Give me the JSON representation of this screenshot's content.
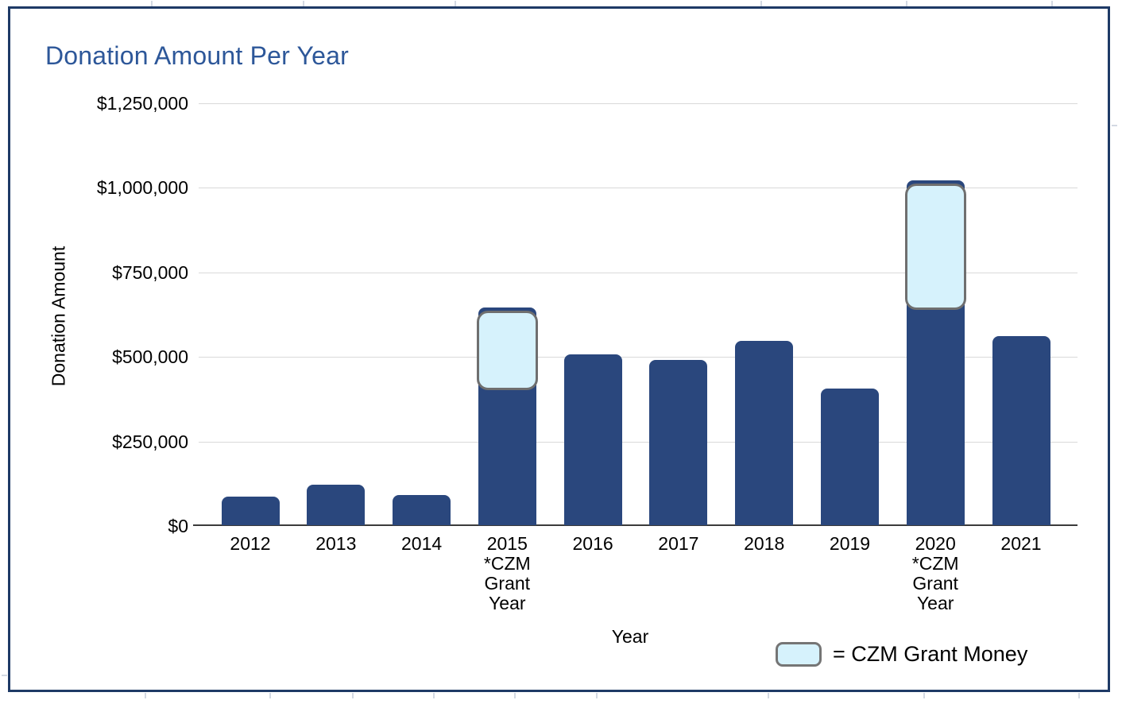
{
  "chart_data": {
    "type": "bar",
    "title": "Donation Amount Per Year",
    "xlabel": "Year",
    "ylabel": "Donation Amount",
    "ylim": [
      0,
      1250000
    ],
    "grid": true,
    "legend_position": "bottom-right",
    "yticks": [
      {
        "value": 0,
        "label": "$0"
      },
      {
        "value": 250000,
        "label": "$250,000"
      },
      {
        "value": 500000,
        "label": "$500,000"
      },
      {
        "value": 750000,
        "label": "$750,000"
      },
      {
        "value": 1000000,
        "label": "$1,000,000"
      },
      {
        "value": 1250000,
        "label": "$1,250,000"
      }
    ],
    "bars": [
      {
        "year": "2012",
        "value": 85000
      },
      {
        "year": "2013",
        "value": 120000
      },
      {
        "year": "2014",
        "value": 90000
      },
      {
        "year": "2015",
        "value": 645000,
        "sublabels": [
          "*CZM",
          "Grant",
          "Year"
        ],
        "grant": {
          "from": 410000,
          "to": 645000
        }
      },
      {
        "year": "2016",
        "value": 505000
      },
      {
        "year": "2017",
        "value": 490000
      },
      {
        "year": "2018",
        "value": 545000
      },
      {
        "year": "2019",
        "value": 405000
      },
      {
        "year": "2020",
        "value": 1020000,
        "sublabels": [
          "*CZM",
          "Grant",
          "Year"
        ],
        "grant": {
          "from": 645000,
          "to": 1020000
        }
      },
      {
        "year": "2021",
        "value": 560000
      }
    ],
    "legend": {
      "label": "= CZM Grant Money"
    }
  },
  "colors": {
    "title": "#2d5799",
    "bar": "#2a477d",
    "grant_fill": "#d6f2fc",
    "grant_border": "#6f6f6f",
    "gridline": "#d9d9d9",
    "axis_line": "#3b3b3b",
    "frame_border": "#1e3a66"
  }
}
